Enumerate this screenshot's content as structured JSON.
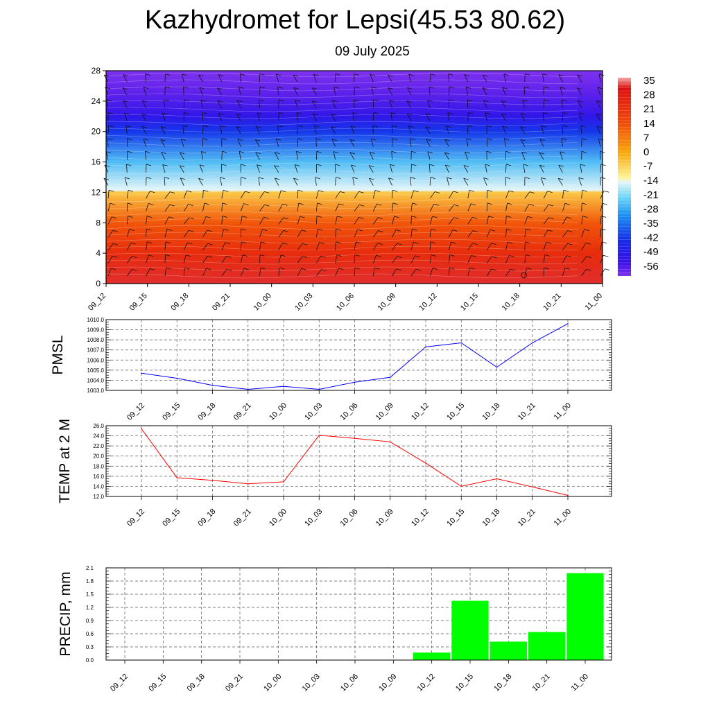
{
  "title": "Kazhydromet for Lepsi(45.53 80.62)",
  "subtitle": "09 July 2025",
  "time_labels": [
    "09_12",
    "09_15",
    "09_18",
    "09_21",
    "10_00",
    "10_03",
    "10_06",
    "10_09",
    "10_12",
    "10_15",
    "10_18",
    "10_21",
    "11_00"
  ],
  "chart_data": [
    {
      "type": "heatmap",
      "ylim": [
        0,
        28
      ],
      "yticks": [
        "0",
        "4",
        "8",
        "12",
        "16",
        "20",
        "24",
        "28"
      ],
      "x": [
        "09_12",
        "09_15",
        "09_18",
        "09_21",
        "10_00",
        "10_03",
        "10_06",
        "10_09",
        "10_12",
        "10_15",
        "10_18",
        "10_21",
        "11_00"
      ],
      "colorbar": {
        "labels": [
          "35",
          "28",
          "21",
          "14",
          "7",
          "0",
          "-7",
          "-14",
          "-21",
          "-28",
          "-35",
          "-42",
          "-49",
          "-56"
        ],
        "stops": [
          {
            "value": 35,
            "color": "#f2a7a7"
          },
          {
            "value": 30,
            "color": "#dd0f0f"
          },
          {
            "value": 14,
            "color": "#f0490a"
          },
          {
            "value": 0,
            "color": "#f7a70a"
          },
          {
            "value": -12,
            "color": "#fff59a"
          },
          {
            "value": -14,
            "color": "#e6f6f8"
          },
          {
            "value": -21,
            "color": "#6fd6f6"
          },
          {
            "value": -30,
            "color": "#168bf0"
          },
          {
            "value": -42,
            "color": "#1526e8"
          },
          {
            "value": -52,
            "color": "#3c10e8"
          },
          {
            "value": -58,
            "color": "#7f32ee"
          }
        ]
      },
      "field_profile": [
        {
          "level": 0,
          "value": 31
        },
        {
          "level": 4,
          "value": 22
        },
        {
          "level": 8,
          "value": 12
        },
        {
          "level": 12,
          "value": -5
        },
        {
          "level": 12.3,
          "value": -14
        },
        {
          "level": 16,
          "value": -24
        },
        {
          "level": 20,
          "value": -40
        },
        {
          "level": 22,
          "value": -49
        },
        {
          "level": 25,
          "value": -55
        },
        {
          "level": 28,
          "value": -58
        }
      ]
    },
    {
      "type": "line",
      "ylabel": "PMSL",
      "x": [
        "09_12",
        "09_15",
        "09_18",
        "09_21",
        "10_00",
        "10_03",
        "10_06",
        "10_09",
        "10_12",
        "10_15",
        "10_18",
        "10_21",
        "11_00"
      ],
      "series": [
        {
          "values": [
            1004.7,
            1004.2,
            1003.5,
            1003.1,
            1003.4,
            1003.1,
            1003.8,
            1004.3,
            1007.3,
            1007.7,
            1005.3,
            1007.7,
            1009.6
          ]
        }
      ],
      "ylim": [
        1003.0,
        1010.0
      ],
      "yticks": [
        "1003.0",
        "1004.0",
        "1005.0",
        "1006.0",
        "1007.0",
        "1008.0",
        "1009.0",
        "1010.0"
      ],
      "color": "#0000ff"
    },
    {
      "type": "line",
      "ylabel": "TEMP at 2 M",
      "x": [
        "09_12",
        "09_15",
        "09_18",
        "09_21",
        "10_00",
        "10_03",
        "10_06",
        "10_09",
        "10_12",
        "10_15",
        "10_18",
        "10_21",
        "11_00"
      ],
      "series": [
        {
          "values": [
            25.4,
            15.7,
            15.2,
            14.5,
            14.9,
            24.1,
            23.5,
            22.8,
            18.6,
            14.0,
            15.5,
            13.9,
            12.2
          ]
        }
      ],
      "ylim": [
        12.0,
        26.0
      ],
      "yticks": [
        "12.0",
        "14.0",
        "16.0",
        "18.0",
        "20.0",
        "22.0",
        "24.0",
        "26.0"
      ],
      "color": "#ff0000"
    },
    {
      "type": "bar",
      "ylabel": "PRECIP, mm",
      "categories": [
        "09_12",
        "09_15",
        "09_18",
        "09_21",
        "10_00",
        "10_03",
        "10_06",
        "10_09",
        "10_12",
        "10_15",
        "10_18",
        "10_21",
        "11_00"
      ],
      "values": [
        0,
        0,
        0,
        0,
        0,
        0,
        0,
        0,
        0.17,
        1.35,
        0.42,
        0.64,
        1.98
      ],
      "ylim": [
        0.0,
        2.1
      ],
      "yticks": [
        "0.0",
        "0.3",
        "0.6",
        "0.9",
        "1.2",
        "1.5",
        "1.8",
        "2.1"
      ],
      "color": "#00ff00"
    }
  ]
}
